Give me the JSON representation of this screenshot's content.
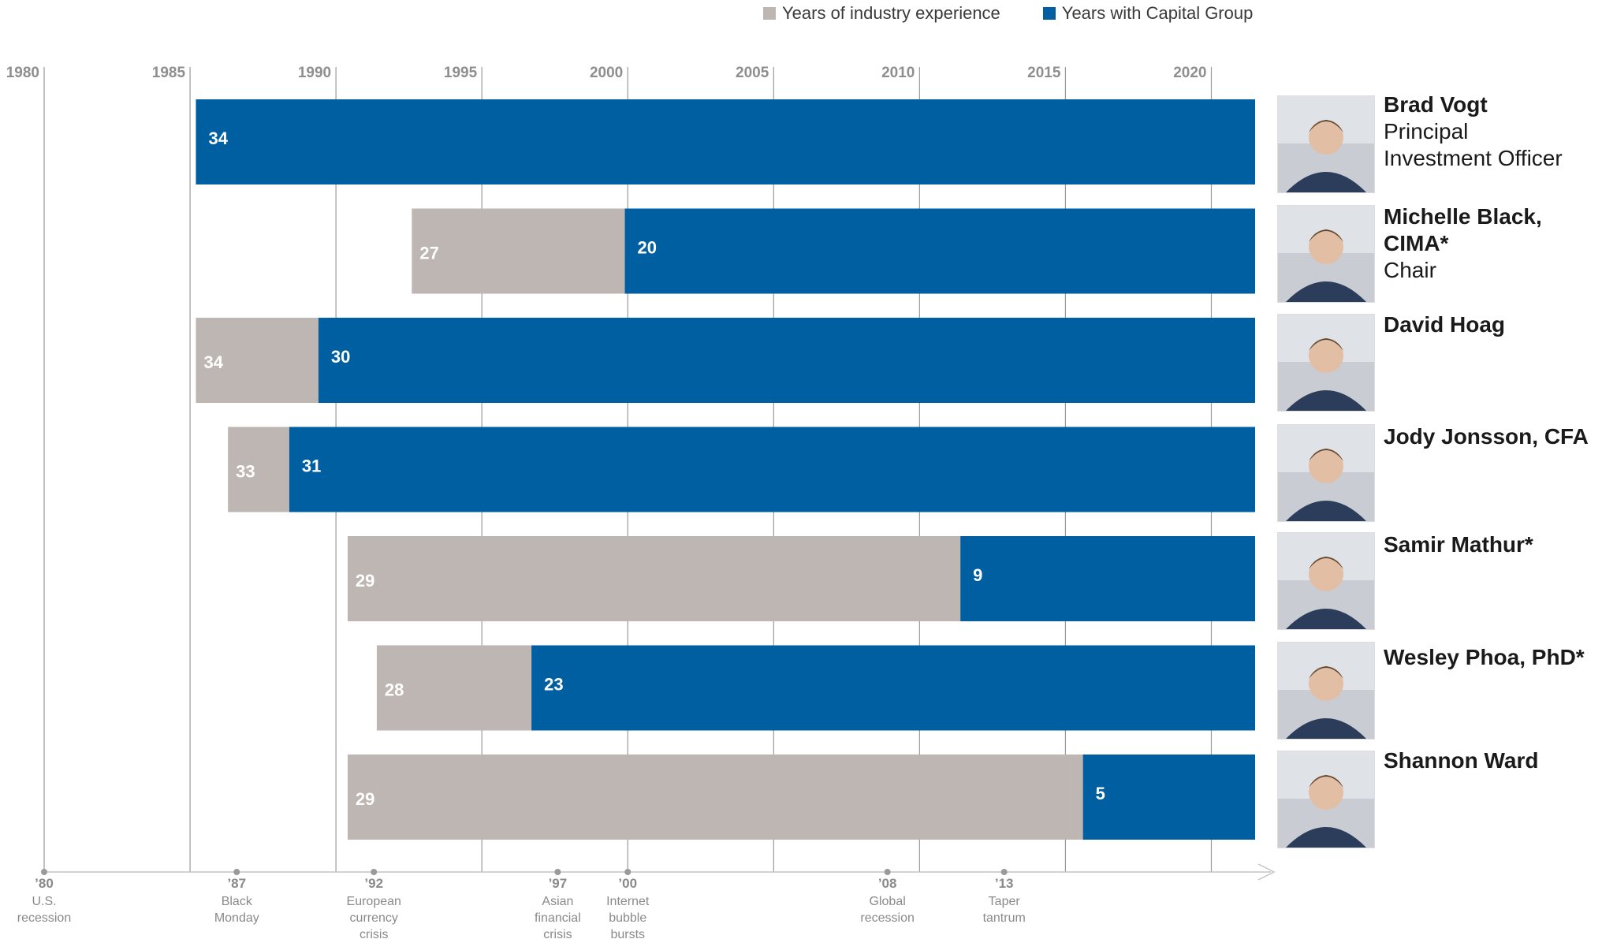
{
  "legend": {
    "industry_label": "Years of industry experience",
    "capital_label": "Years with Capital Group",
    "industry_color": "#bdb6b2",
    "capital_color": "#005fa1"
  },
  "chart_data": {
    "type": "bar",
    "orientation": "horizontal-stacked-timeline",
    "xlim": [
      1980,
      2021.5
    ],
    "x_ticks": [
      1980,
      1985,
      1990,
      1995,
      2000,
      2005,
      2010,
      2015,
      2020
    ],
    "x_tick_labels": [
      "1980",
      "1985",
      "1990",
      "1995",
      "2000",
      "2005",
      "2010",
      "2015",
      "2020"
    ],
    "grid": true,
    "legend_position": "top-center",
    "end_year": 2021.5,
    "series": [
      {
        "name": "Years of industry experience",
        "color": "#bdb6b2"
      },
      {
        "name": "Years with Capital Group",
        "color": "#005fa1"
      }
    ],
    "rows": [
      {
        "name": "Brad Vogt",
        "titles": [
          "Principal",
          "Investment Officer"
        ],
        "industry_years": 34,
        "capital_years": 34,
        "industry_start": 1985.2,
        "capital_start": 1985.2,
        "show_industry_label": false
      },
      {
        "name": "Michelle Black, CIMA*",
        "titles": [
          "Chair"
        ],
        "industry_years": 27,
        "capital_years": 20,
        "industry_start": 1992.6,
        "capital_start": 1999.9,
        "show_industry_label": true
      },
      {
        "name": "David Hoag",
        "titles": [],
        "industry_years": 34,
        "capital_years": 30,
        "industry_start": 1985.2,
        "capital_start": 1989.4,
        "show_industry_label": true
      },
      {
        "name": "Jody Jonsson, CFA",
        "titles": [],
        "industry_years": 33,
        "capital_years": 31,
        "industry_start": 1986.3,
        "capital_start": 1988.4,
        "show_industry_label": true
      },
      {
        "name": "Samir Mathur*",
        "titles": [],
        "industry_years": 29,
        "capital_years": 9,
        "industry_start": 1990.4,
        "capital_start": 2011.4,
        "show_industry_label": true
      },
      {
        "name": "Wesley Phoa, PhD*",
        "titles": [],
        "industry_years": 28,
        "capital_years": 23,
        "industry_start": 1991.4,
        "capital_start": 1996.7,
        "show_industry_label": true
      },
      {
        "name": "Shannon Ward",
        "titles": [],
        "industry_years": 29,
        "capital_years": 5,
        "industry_start": 1990.4,
        "capital_start": 2015.6,
        "show_industry_label": true
      }
    ],
    "events": [
      {
        "year": 1980.0,
        "label_year": "’80",
        "text": [
          "U.S.",
          "recession"
        ]
      },
      {
        "year": 1986.6,
        "label_year": "’87",
        "text": [
          "Black",
          "Monday"
        ]
      },
      {
        "year": 1991.3,
        "label_year": "’92",
        "text": [
          "European",
          "currency",
          "crisis"
        ]
      },
      {
        "year": 1997.6,
        "label_year": "’97",
        "text": [
          "Asian",
          "financial",
          "crisis"
        ]
      },
      {
        "year": 2000.0,
        "label_year": "’00",
        "text": [
          "Internet",
          "bubble",
          "bursts"
        ]
      },
      {
        "year": 2008.9,
        "label_year": "’08",
        "text": [
          "Global",
          "recession"
        ]
      },
      {
        "year": 2012.9,
        "label_year": "’13",
        "text": [
          "Taper",
          "tantrum"
        ]
      }
    ]
  }
}
